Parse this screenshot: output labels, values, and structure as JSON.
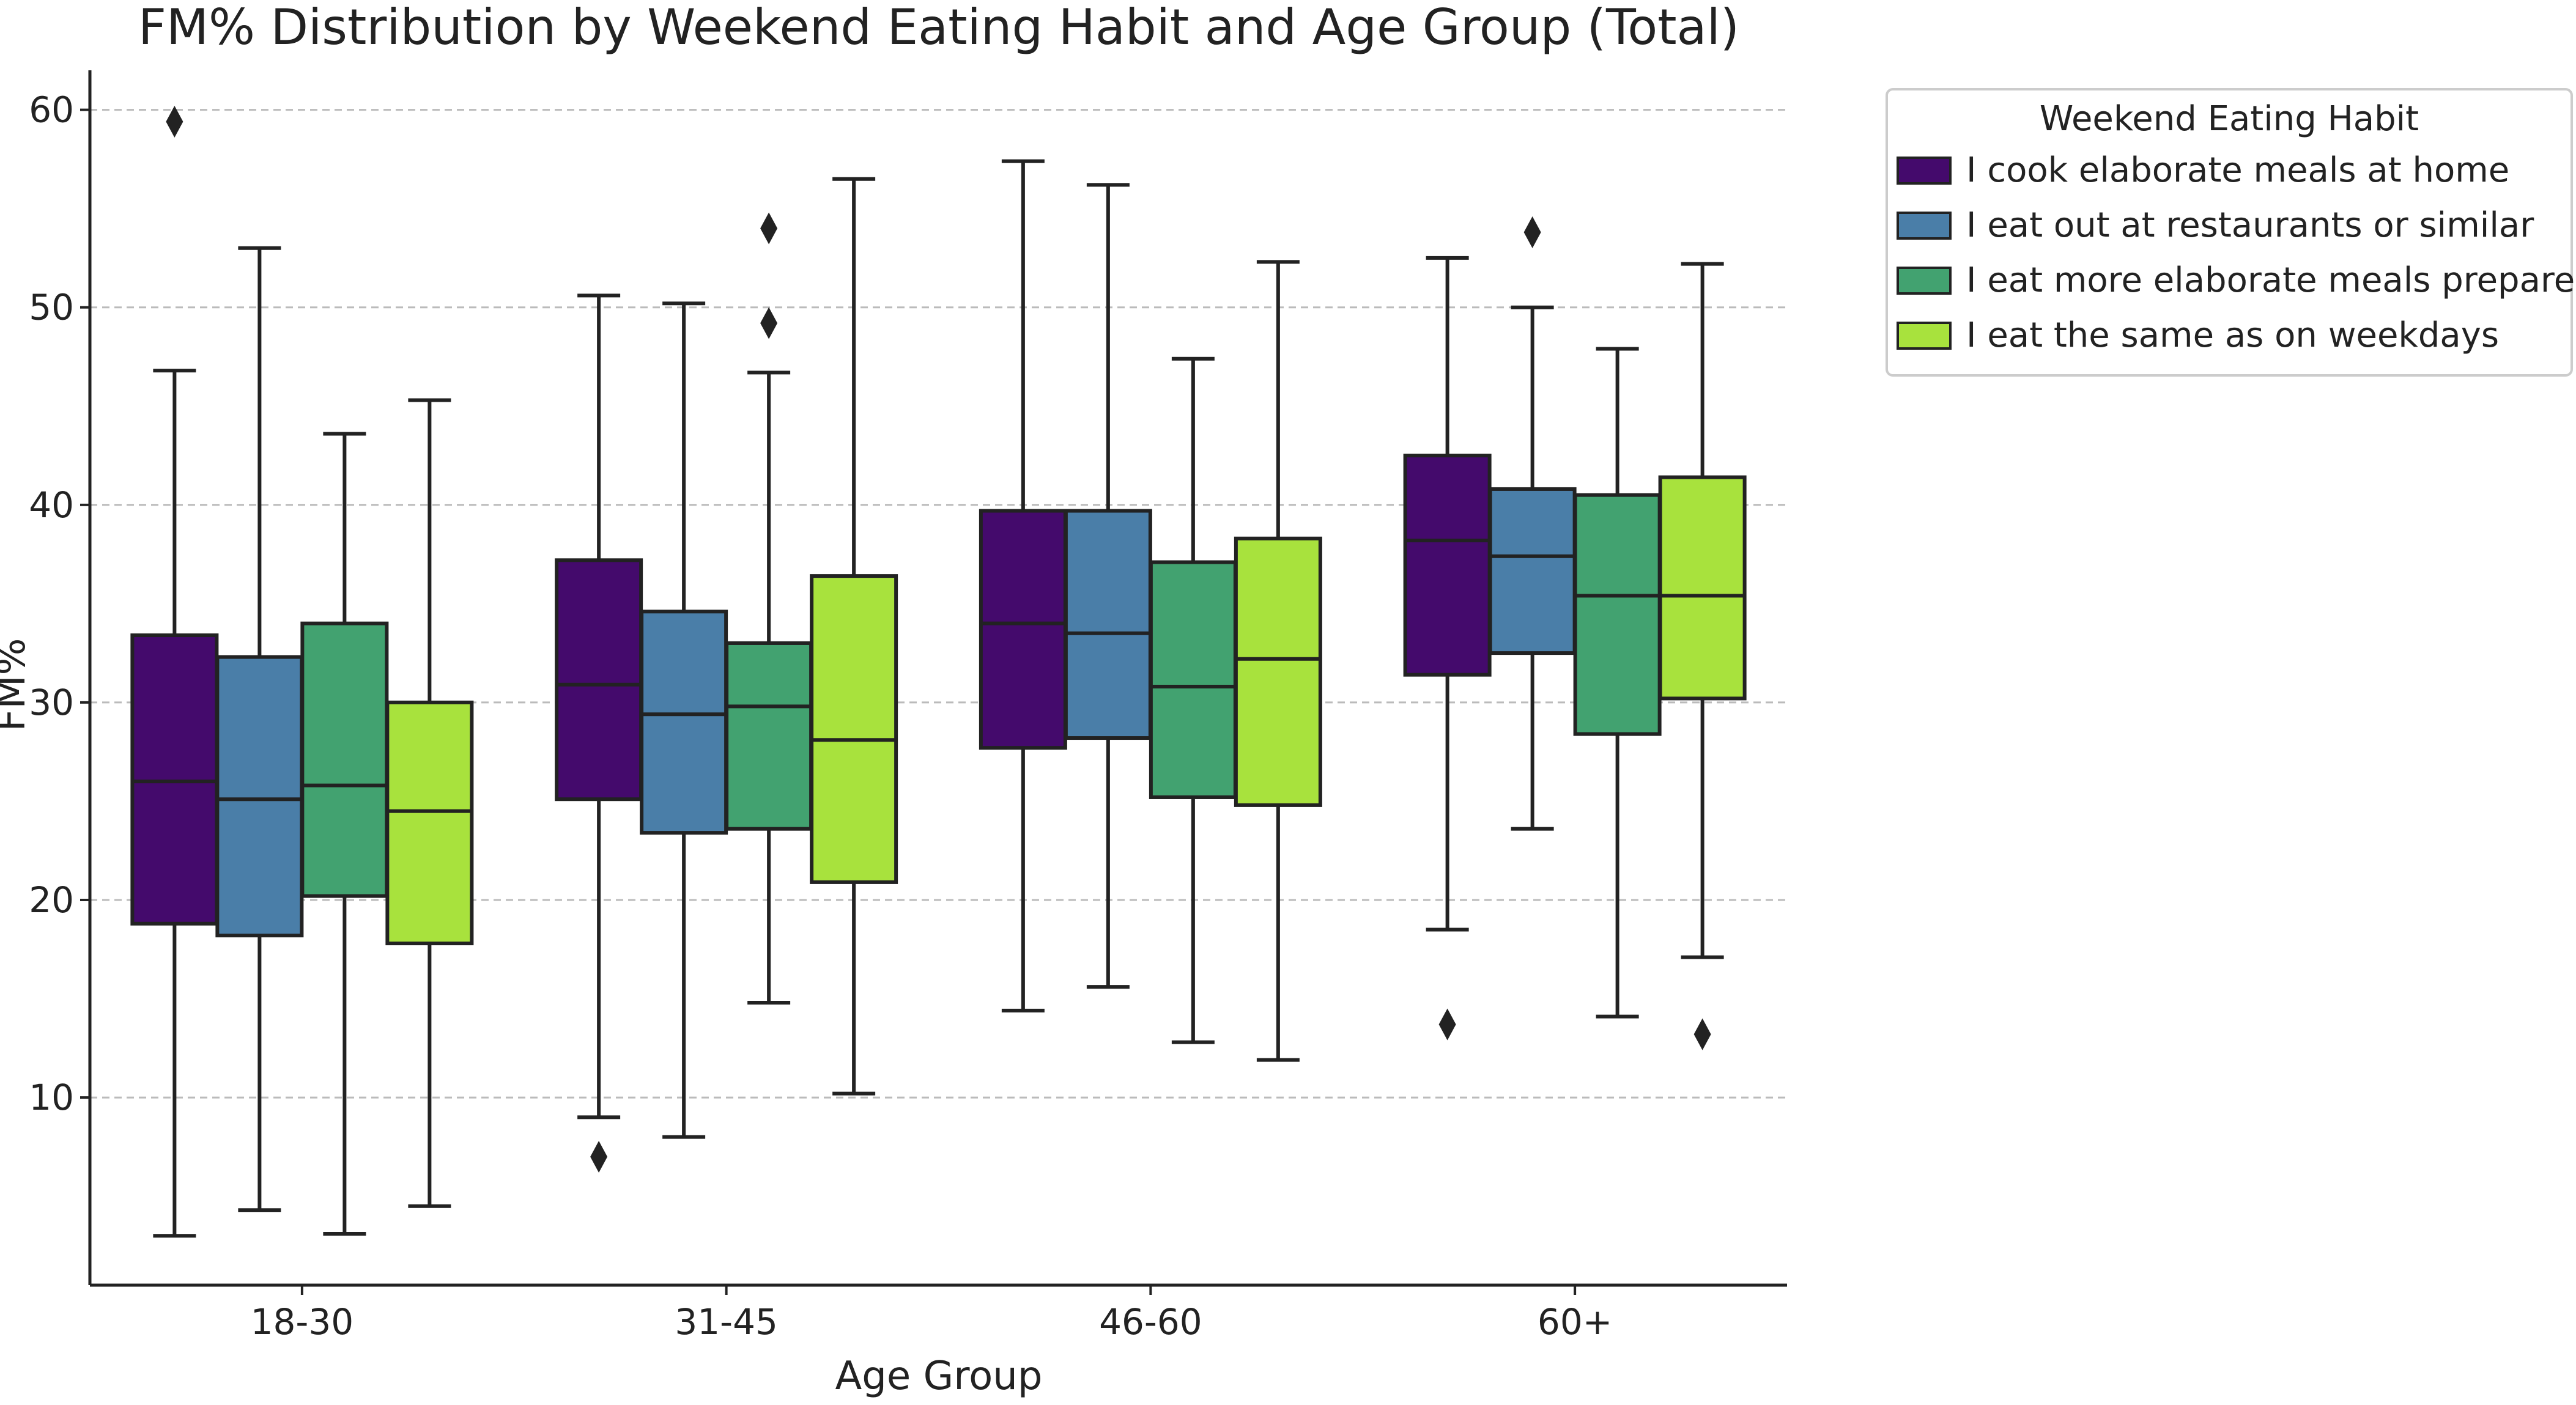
{
  "chart_data": {
    "type": "box",
    "title": "FM% Distribution by Weekend Eating Habit and Age Group (Total)",
    "xlabel": "Age Group",
    "ylabel": "FM%",
    "ylim": [
      0.5,
      62
    ],
    "yticks": [
      10,
      20,
      30,
      40,
      50,
      60
    ],
    "grid": "horizontal-dashed",
    "categories": [
      "18-30",
      "31-45",
      "46-60",
      "60+"
    ],
    "legend": {
      "title": "Weekend Eating Habit",
      "position": "outside-top-right"
    },
    "series": [
      {
        "name": "I cook elaborate meals at home",
        "color": "#440a6c",
        "boxes": [
          {
            "whisker_low": 3.0,
            "q1": 18.8,
            "median": 26.0,
            "q3": 33.4,
            "whisker_high": 46.8,
            "outliers": [
              59.4
            ]
          },
          {
            "whisker_low": 9.0,
            "q1": 25.1,
            "median": 30.9,
            "q3": 37.2,
            "whisker_high": 50.6,
            "outliers": [
              7.0
            ]
          },
          {
            "whisker_low": 14.4,
            "q1": 27.7,
            "median": 34.0,
            "q3": 39.7,
            "whisker_high": 57.4,
            "outliers": []
          },
          {
            "whisker_low": 18.5,
            "q1": 31.4,
            "median": 38.2,
            "q3": 42.5,
            "whisker_high": 52.5,
            "outliers": [
              13.7
            ]
          }
        ]
      },
      {
        "name": "I eat out at restaurants or similar",
        "color": "#4a7ea8",
        "boxes": [
          {
            "whisker_low": 4.3,
            "q1": 18.2,
            "median": 25.1,
            "q3": 32.3,
            "whisker_high": 53.0,
            "outliers": []
          },
          {
            "whisker_low": 8.0,
            "q1": 23.4,
            "median": 29.4,
            "q3": 34.6,
            "whisker_high": 50.2,
            "outliers": []
          },
          {
            "whisker_low": 15.6,
            "q1": 28.2,
            "median": 33.5,
            "q3": 39.7,
            "whisker_high": 56.2,
            "outliers": []
          },
          {
            "whisker_low": 23.6,
            "q1": 32.5,
            "median": 37.4,
            "q3": 40.8,
            "whisker_high": 50.0,
            "outliers": [
              53.8
            ]
          }
        ]
      },
      {
        "name": "I eat more elaborate meals prepared by others",
        "color": "#42a270",
        "boxes": [
          {
            "whisker_low": 3.1,
            "q1": 20.2,
            "median": 25.8,
            "q3": 34.0,
            "whisker_high": 43.6,
            "outliers": []
          },
          {
            "whisker_low": 14.8,
            "q1": 23.6,
            "median": 29.8,
            "q3": 33.0,
            "whisker_high": 46.7,
            "outliers": [
              49.2,
              54.0
            ]
          },
          {
            "whisker_low": 12.8,
            "q1": 25.2,
            "median": 30.8,
            "q3": 37.1,
            "whisker_high": 47.4,
            "outliers": []
          },
          {
            "whisker_low": 14.1,
            "q1": 28.4,
            "median": 35.4,
            "q3": 40.5,
            "whisker_high": 47.9,
            "outliers": []
          }
        ]
      },
      {
        "name": "I eat the same as on weekdays",
        "color": "#a8e23d",
        "boxes": [
          {
            "whisker_low": 4.5,
            "q1": 17.8,
            "median": 24.5,
            "q3": 30.0,
            "whisker_high": 45.3,
            "outliers": []
          },
          {
            "whisker_low": 10.2,
            "q1": 20.9,
            "median": 28.1,
            "q3": 36.4,
            "whisker_high": 56.5,
            "outliers": []
          },
          {
            "whisker_low": 11.9,
            "q1": 24.8,
            "median": 32.2,
            "q3": 38.3,
            "whisker_high": 52.3,
            "outliers": []
          },
          {
            "whisker_low": 17.1,
            "q1": 30.2,
            "median": 35.4,
            "q3": 41.4,
            "whisker_high": 52.2,
            "outliers": [
              13.2
            ]
          }
        ]
      }
    ]
  }
}
